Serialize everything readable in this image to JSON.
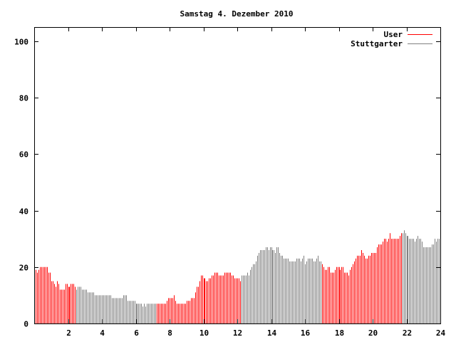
{
  "chart_data": {
    "type": "bar",
    "title": "Samstag 4. Dezember 2010",
    "xlabel": "",
    "ylabel": "",
    "xlim": [
      0,
      24
    ],
    "ylim": [
      0,
      105
    ],
    "x_ticks": [
      "2",
      "4",
      "6",
      "8",
      "10",
      "12",
      "14",
      "16",
      "18",
      "20",
      "22",
      "24"
    ],
    "x_tick_values": [
      2,
      4,
      6,
      8,
      10,
      12,
      14,
      16,
      18,
      20,
      22,
      24
    ],
    "y_ticks": [
      "0",
      "20",
      "40",
      "60",
      "80",
      "100"
    ],
    "y_tick_values": [
      0,
      20,
      40,
      60,
      80,
      100
    ],
    "grid": false,
    "legend_position": "top-right",
    "interval_minutes": 5,
    "series": [
      {
        "name": "User",
        "color": "#ff0000"
      },
      {
        "name": "Stuttgarter",
        "color": "#808080"
      }
    ],
    "segments": [
      {
        "series": "User",
        "from_hour": 0,
        "to_hour": 2.5
      },
      {
        "series": "Stuttgarter",
        "from_hour": 2.5,
        "to_hour": 7.25
      },
      {
        "series": "User",
        "from_hour": 7.25,
        "to_hour": 12.17
      },
      {
        "series": "Stuttgarter",
        "from_hour": 12.17,
        "to_hour": 17
      },
      {
        "series": "User",
        "from_hour": 17,
        "to_hour": 21.75
      },
      {
        "series": "Stuttgarter",
        "from_hour": 21.75,
        "to_hour": 24
      }
    ],
    "values": [
      19,
      19,
      18,
      19,
      20,
      20,
      20,
      20,
      20,
      20,
      18,
      18,
      15,
      15,
      14,
      13,
      15,
      14,
      12,
      12,
      12,
      12,
      14,
      14,
      13,
      13,
      14,
      14,
      14,
      13,
      12,
      13,
      13,
      13,
      12,
      12,
      12,
      12,
      11,
      11,
      11,
      11,
      11,
      10,
      10,
      10,
      10,
      10,
      10,
      10,
      10,
      10,
      10,
      10,
      10,
      9,
      9,
      9,
      9,
      9,
      9,
      9,
      9,
      10,
      10,
      10,
      8,
      8,
      8,
      8,
      8,
      8,
      7,
      7,
      7,
      7,
      7,
      6,
      7,
      6,
      7,
      7,
      7,
      7,
      7,
      7,
      7,
      7,
      7,
      7,
      7,
      7,
      7,
      7,
      8,
      9,
      9,
      9,
      9,
      10,
      8,
      7,
      7,
      7,
      7,
      7,
      7,
      7,
      8,
      8,
      8,
      9,
      9,
      9,
      11,
      13,
      13,
      15,
      17,
      17,
      16,
      16,
      15,
      15,
      16,
      16,
      17,
      17,
      18,
      18,
      18,
      17,
      17,
      17,
      17,
      18,
      18,
      18,
      18,
      18,
      17,
      17,
      16,
      16,
      16,
      16,
      15,
      17,
      17,
      17,
      17,
      18,
      17,
      19,
      20,
      21,
      21,
      22,
      24,
      25,
      26,
      26,
      26,
      26,
      27,
      27,
      26,
      27,
      27,
      26,
      26,
      25,
      27,
      27,
      25,
      24,
      24,
      23,
      23,
      23,
      23,
      22,
      22,
      22,
      22,
      22,
      23,
      23,
      23,
      22,
      23,
      24,
      21,
      22,
      23,
      23,
      23,
      23,
      22,
      22,
      23,
      24,
      22,
      22,
      21,
      20,
      19,
      19,
      20,
      20,
      18,
      18,
      18,
      19,
      20,
      20,
      20,
      19,
      20,
      20,
      18,
      18,
      18,
      17,
      19,
      20,
      21,
      22,
      23,
      24,
      24,
      24,
      26,
      25,
      24,
      23,
      23,
      24,
      24,
      25,
      25,
      25,
      25,
      27,
      28,
      28,
      28,
      29,
      30,
      30,
      29,
      30,
      32,
      30,
      30,
      30,
      30,
      30,
      30,
      31,
      32,
      32,
      33,
      32,
      31,
      31,
      30,
      30,
      30,
      30,
      29,
      30,
      31,
      30,
      30,
      29,
      27,
      27,
      27,
      27,
      27,
      27,
      28,
      28,
      30,
      29,
      30,
      30
    ]
  }
}
